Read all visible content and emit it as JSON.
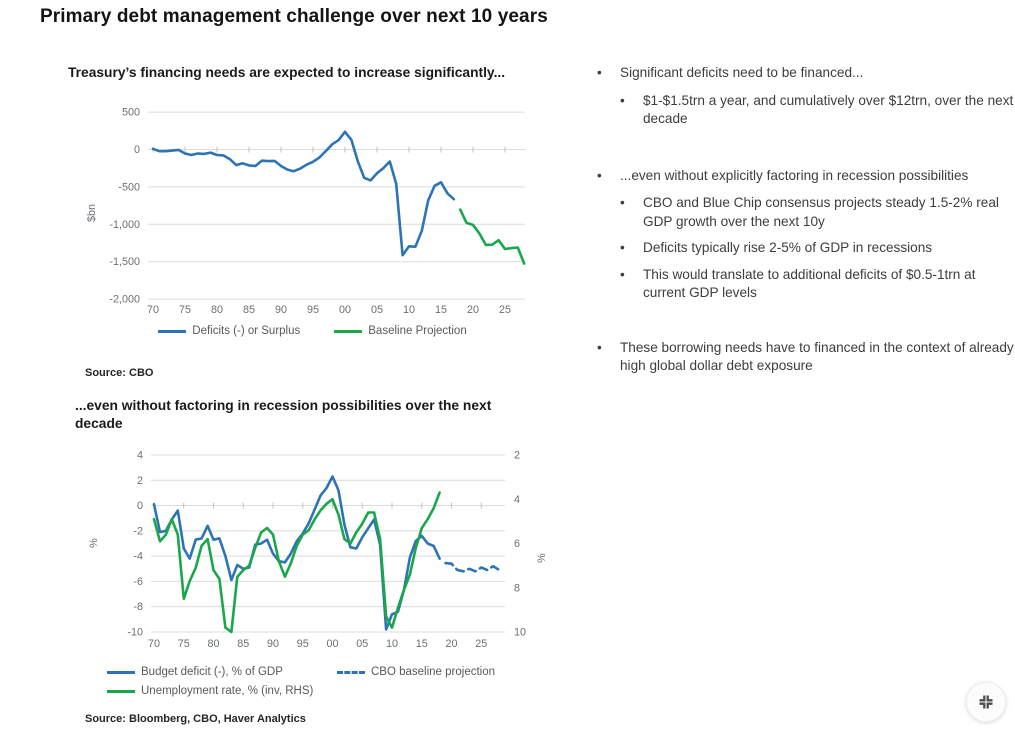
{
  "title": "Primary debt management challenge over next 10 years",
  "chart_data": [
    {
      "type": "line",
      "title": "Treasury’s financing needs are expected to increase significantly...",
      "ylabel": "$bn",
      "ylim": [
        -2000,
        500
      ],
      "grid": true,
      "legend_position": "bottom",
      "yticks": [
        500,
        0,
        -500,
        -1000,
        -1500,
        -2000
      ],
      "ytick_labels": [
        "500",
        "0",
        "-500",
        "-1,000",
        "-1,500",
        "-2,000"
      ],
      "xticks": [
        "70",
        "75",
        "80",
        "85",
        "90",
        "95",
        "00",
        "05",
        "10",
        "15",
        "20",
        "25"
      ],
      "series": [
        {
          "name": "Deficits (-) or Surplus",
          "color": "#2E74B5",
          "dash": false,
          "start_year": 1970,
          "values": [
            8,
            -23,
            -23,
            -15,
            -6,
            -53,
            -74,
            -54,
            -59,
            -41,
            -74,
            -79,
            -128,
            -208,
            -185,
            -212,
            -221,
            -150,
            -155,
            -152,
            -221,
            -269,
            -290,
            -255,
            -203,
            -164,
            -107,
            -22,
            69,
            126,
            236,
            128,
            -158,
            -378,
            -413,
            -318,
            -248,
            -161,
            -459,
            -1413,
            -1294,
            -1300,
            -1087,
            -680,
            -485,
            -438,
            -585,
            -665
          ]
        },
        {
          "name": "Baseline Projection",
          "color": "#1AA64A",
          "dash": false,
          "start_year": 2018,
          "values": [
            -804,
            -981,
            -1008,
            -1123,
            -1276,
            -1273,
            -1213,
            -1330,
            -1318,
            -1310,
            -1526
          ]
        }
      ],
      "source": "Source: CBO"
    },
    {
      "type": "line",
      "title": "...even without factoring in recession possibilities over the next decade",
      "ylabel_left": "%",
      "ylabel_right": "%",
      "ylim_left": [
        -10,
        4
      ],
      "ylim_right_inverted": [
        2,
        10
      ],
      "grid": true,
      "legend_position": "bottom",
      "yticks_left": [
        4,
        2,
        0,
        -2,
        -4,
        -6,
        -8,
        -10
      ],
      "ytick_labels_left": [
        "4",
        "2",
        "0",
        "-2",
        "-4",
        "-6",
        "-8",
        "-10"
      ],
      "yticks_right": [
        2,
        4,
        6,
        8,
        10
      ],
      "ytick_labels_right": [
        "2",
        "4",
        "6",
        "8",
        "10"
      ],
      "xticks": [
        "70",
        "75",
        "80",
        "85",
        "90",
        "95",
        "00",
        "05",
        "10",
        "15",
        "20",
        "25"
      ],
      "series": [
        {
          "name": "Budget deficit (-), % of GDP",
          "color": "#2E74B5",
          "axis": "left",
          "dash": false,
          "start_year": 1970,
          "values": [
            0.1,
            -2.1,
            -2.0,
            -1.1,
            -0.4,
            -3.4,
            -4.2,
            -2.7,
            -2.6,
            -1.6,
            -2.7,
            -2.6,
            -4.0,
            -5.9,
            -4.7,
            -5.0,
            -4.9,
            -3.1,
            -3.0,
            -2.7,
            -3.8,
            -4.4,
            -4.5,
            -3.8,
            -2.8,
            -2.2,
            -1.4,
            -0.3,
            0.8,
            1.4,
            2.3,
            1.2,
            -1.5,
            -3.3,
            -3.4,
            -2.5,
            -1.8,
            -1.1,
            -3.1,
            -9.8,
            -8.6,
            -8.4,
            -6.7,
            -4.1,
            -2.8,
            -2.4,
            -3.0,
            -3.2,
            -4.2
          ]
        },
        {
          "name": "CBO baseline projection",
          "color": "#2E74B5",
          "axis": "left",
          "dash": true,
          "start_year": 2019,
          "values": [
            -4.55,
            -4.6,
            -5.1,
            -5.2,
            -5.0,
            -5.2,
            -4.9,
            -5.1,
            -4.8,
            -5.1
          ]
        },
        {
          "name": "Unemployment rate, % (inv, RHS)",
          "color": "#1AA64A",
          "axis": "right",
          "dash": false,
          "start_year": 1970,
          "values": [
            4.9,
            5.9,
            5.6,
            4.9,
            5.6,
            8.5,
            7.7,
            7.1,
            6.1,
            5.8,
            7.2,
            7.6,
            9.8,
            10.0,
            7.5,
            7.2,
            7.0,
            6.2,
            5.5,
            5.3,
            5.6,
            6.8,
            7.5,
            6.9,
            6.1,
            5.6,
            5.4,
            4.9,
            4.5,
            4.2,
            4.0,
            4.7,
            5.8,
            6.0,
            5.5,
            5.1,
            4.6,
            4.6,
            5.8,
            9.3,
            9.8,
            8.9,
            8.1,
            7.4,
            6.2,
            5.3,
            4.9,
            4.4,
            3.7
          ]
        }
      ],
      "source": "Source: Bloomberg, CBO, Haver Analytics"
    }
  ],
  "bullets": [
    {
      "level": 1,
      "gap_before": false,
      "text": "Significant deficits need to be financed..."
    },
    {
      "level": 2,
      "gap_before": false,
      "text": "$1-$1.5trn a year, and cumulatively over $12trn, over the next decade"
    },
    {
      "level": 1,
      "gap_before": true,
      "text": "...even without explicitly factoring in recession possibilities"
    },
    {
      "level": 2,
      "gap_before": false,
      "text": "CBO and Blue Chip consensus projects steady 1.5-2% real GDP growth over the next 10y"
    },
    {
      "level": 2,
      "gap_before": false,
      "text": "Deficits typically rise 2-5% of GDP in recessions"
    },
    {
      "level": 2,
      "gap_before": false,
      "text": "This would translate to additional deficits of $0.5-1trn at current GDP levels"
    },
    {
      "level": 1,
      "gap_before": true,
      "text": "These borrowing needs have to financed in the context of already high global dollar debt exposure"
    }
  ],
  "fab": {
    "icon": "collapse-icon"
  }
}
